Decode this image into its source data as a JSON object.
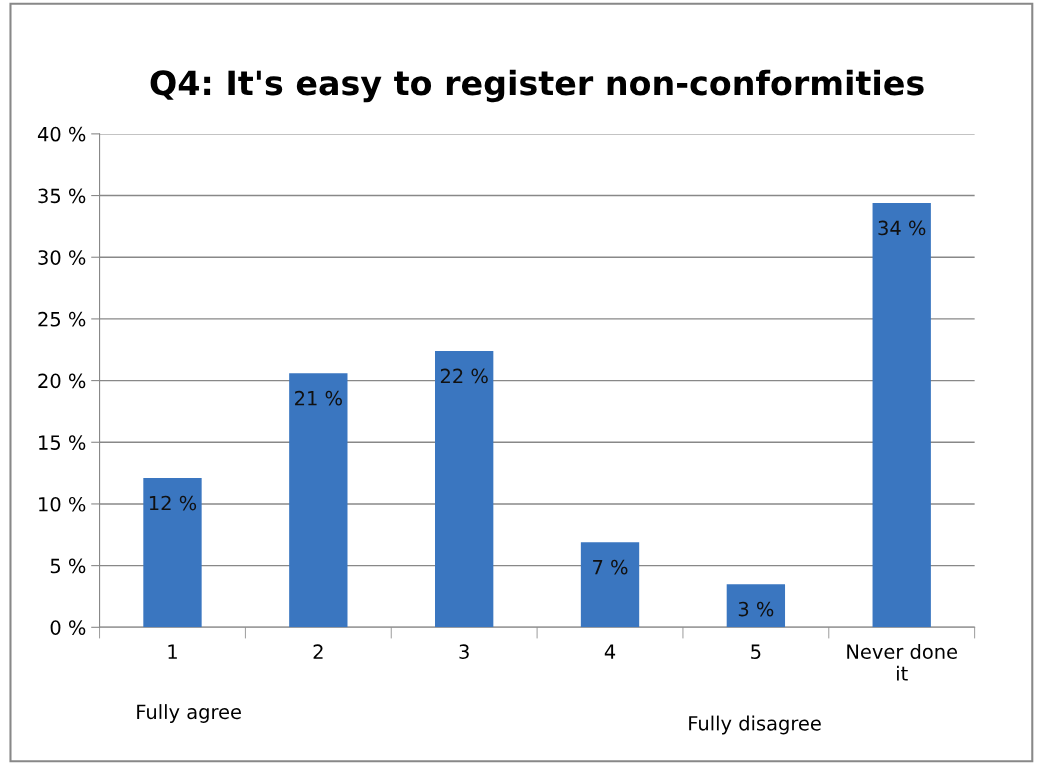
{
  "chart_data": {
    "type": "bar",
    "title": "Q4: It's easy to register non-conformities",
    "categories": [
      "1",
      "2",
      "3",
      "4",
      "5",
      "Never done\nit"
    ],
    "values": [
      12.1,
      20.6,
      22.4,
      6.9,
      3.5,
      34.4
    ],
    "value_labels": [
      "12 %",
      "21 %",
      "22 %",
      "7 %",
      "3 %",
      "34 %"
    ],
    "color": "#3a76c0",
    "ylim": [
      0,
      40
    ],
    "yticks": [
      {
        "value": 0,
        "label": "0 %"
      },
      {
        "value": 5,
        "label": "5 %"
      },
      {
        "value": 10,
        "label": "10 %"
      },
      {
        "value": 15,
        "label": "15 %"
      },
      {
        "value": 20,
        "label": "20 %"
      },
      {
        "value": 25,
        "label": "25 %"
      },
      {
        "value": 30,
        "label": "30 %"
      },
      {
        "value": 35,
        "label": "35 %"
      },
      {
        "value": 40,
        "label": "40 %"
      }
    ],
    "grid": "y",
    "legend": false,
    "annotations": [
      "Fully agree",
      "Fully disagree"
    ]
  }
}
